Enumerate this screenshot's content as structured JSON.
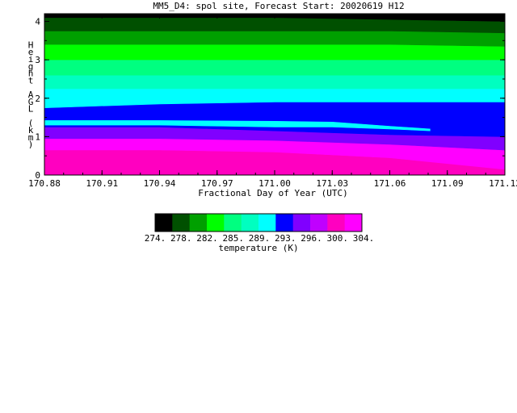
{
  "chart_data": {
    "type": "heatmap",
    "title": "MM5_D4: spol site,  Forecast Start: 20020619 H12",
    "xlabel": "Fractional Day of Year (UTC)",
    "ylabel": "Height AGL (km)",
    "xlim": [
      170.88,
      171.12
    ],
    "ylim": [
      0,
      4.2
    ],
    "x_ticks": [
      "170.88",
      "170.91",
      "170.94",
      "170.97",
      "171.00",
      "171.03",
      "171.06",
      "171.09",
      "171.12"
    ],
    "y_ticks": [
      "0",
      "1",
      "2",
      "3",
      "4"
    ],
    "grid": false,
    "colorbar": {
      "label": "temperature (K)",
      "tick_labels": [
        "274.",
        "278.",
        "282.",
        "285.",
        "289.",
        "293.",
        "296.",
        "300.",
        "304."
      ],
      "colors": [
        "#000000",
        "#005000",
        "#00a000",
        "#00ff00",
        "#00ff80",
        "#00ffc0",
        "#00ffff",
        "#0000ff",
        "#8000ff",
        "#c000ff",
        "#ff00c0",
        "#ff00ff"
      ]
    },
    "x_samples": [
      170.88,
      170.94,
      171.0,
      171.06,
      171.12
    ],
    "bands": [
      {
        "color": "#ff00c0",
        "bottom": [
          0,
          0,
          0,
          0,
          0
        ],
        "top": [
          0.65,
          0.65,
          0.6,
          0.45,
          0.15
        ]
      },
      {
        "color": "#ff00ff",
        "bottom": [
          0.65,
          0.65,
          0.6,
          0.45,
          0.15
        ],
        "top": [
          0.95,
          0.95,
          0.9,
          0.8,
          0.65
        ]
      },
      {
        "color": "#8000ff",
        "bottom": [
          0.95,
          0.95,
          0.9,
          0.8,
          0.65
        ],
        "top": [
          1.25,
          1.25,
          1.15,
          1.05,
          1.0
        ]
      },
      {
        "color": "#0000ff",
        "bottom": [
          1.25,
          1.25,
          1.15,
          1.05,
          1.0
        ],
        "top": [
          1.75,
          1.85,
          1.9,
          1.9,
          1.9
        ]
      },
      {
        "color": "#00ffff",
        "bottom": [
          1.75,
          1.85,
          1.9,
          1.9,
          1.9
        ],
        "top": [
          2.25,
          2.25,
          2.25,
          2.25,
          2.25
        ]
      },
      {
        "color": "#00ffc0",
        "bottom": [
          2.25,
          2.25,
          2.25,
          2.25,
          2.25
        ],
        "top": [
          2.6,
          2.6,
          2.6,
          2.6,
          2.6
        ]
      },
      {
        "color": "#00ff80",
        "bottom": [
          2.6,
          2.6,
          2.6,
          2.6,
          2.6
        ],
        "top": [
          3.0,
          3.0,
          3.0,
          3.0,
          3.0
        ]
      },
      {
        "color": "#00ff00",
        "bottom": [
          3.0,
          3.0,
          3.0,
          3.0,
          3.0
        ],
        "top": [
          3.4,
          3.4,
          3.4,
          3.4,
          3.35
        ]
      },
      {
        "color": "#00a000",
        "bottom": [
          3.4,
          3.4,
          3.4,
          3.4,
          3.35
        ],
        "top": [
          3.75,
          3.75,
          3.75,
          3.75,
          3.7
        ]
      },
      {
        "color": "#005000",
        "bottom": [
          3.75,
          3.75,
          3.75,
          3.75,
          3.7
        ],
        "top": [
          4.1,
          4.1,
          4.1,
          4.05,
          4.0
        ]
      },
      {
        "color": "#000000",
        "bottom": [
          4.1,
          4.1,
          4.1,
          4.05,
          4.0
        ],
        "top": [
          4.2,
          4.2,
          4.2,
          4.2,
          4.2
        ]
      }
    ],
    "filament": {
      "color": "#00ffff",
      "x": [
        170.88,
        170.94,
        171.0,
        171.03,
        171.06,
        171.081
      ],
      "bottom": [
        1.3,
        1.3,
        1.25,
        1.25,
        1.2,
        1.15
      ],
      "top": [
        1.42,
        1.42,
        1.4,
        1.38,
        1.27,
        1.2
      ]
    }
  }
}
